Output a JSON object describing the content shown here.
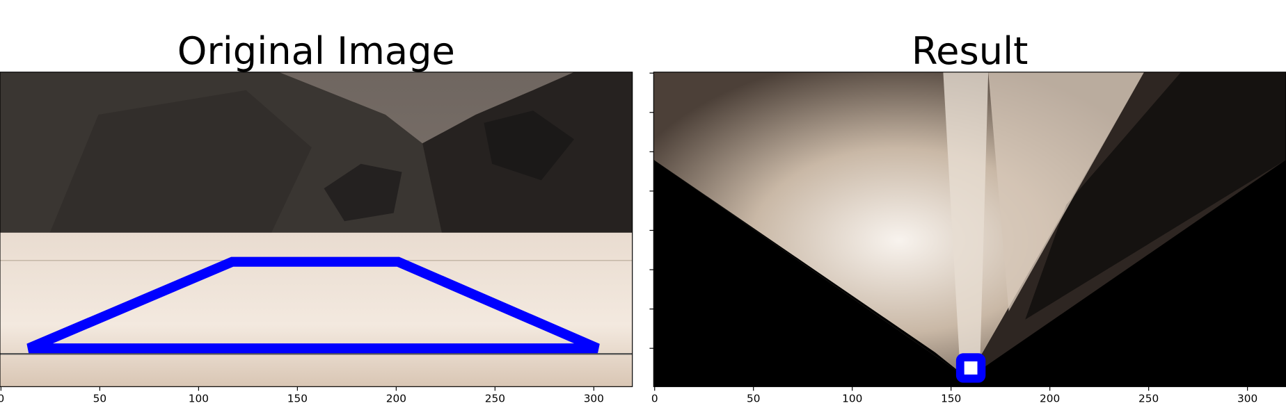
{
  "chart_data": [
    {
      "type": "image",
      "title": "Original Image",
      "xlim": [
        -0.5,
        319.5
      ],
      "ylim": [
        159.5,
        -0.5
      ],
      "xticks": [
        0,
        50,
        100,
        150,
        200,
        250,
        300
      ],
      "polygon": {
        "color": "#0000ff",
        "x": [
          14,
          302,
          201,
          117
        ],
        "y": [
          140,
          140,
          96,
          96
        ]
      }
    },
    {
      "type": "image",
      "title": "Result",
      "xlim": [
        -0.5,
        319.5
      ],
      "ylim": [
        159.5,
        -0.5
      ],
      "xticks": [
        0,
        50,
        100,
        150,
        200,
        250,
        300
      ],
      "yticks": [
        0,
        20,
        40,
        60,
        80,
        100,
        120,
        140
      ],
      "points": {
        "color": "#0000ff",
        "x": [
          160
        ],
        "y": [
          150
        ]
      }
    }
  ]
}
